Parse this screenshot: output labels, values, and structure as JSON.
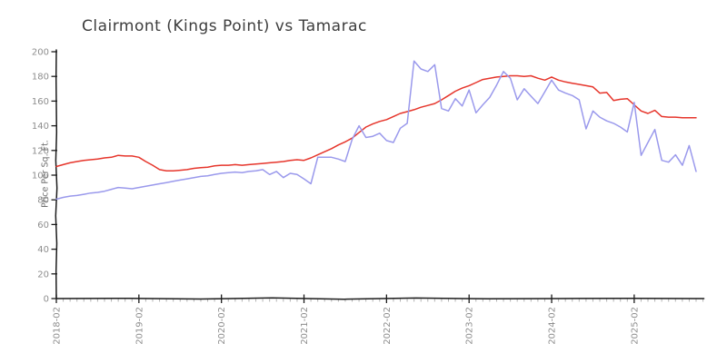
{
  "chart_data": {
    "type": "line",
    "title": "Clairmont (Kings Point) vs Tamarac",
    "ylabel": "Price Per Sq. Ft.",
    "xlabel": "",
    "ylim": [
      0,
      200
    ],
    "yticks": [
      0,
      20,
      40,
      60,
      80,
      100,
      120,
      140,
      160,
      180,
      200
    ],
    "x_major_tick_labels": [
      "2018-02",
      "2019-02",
      "2020-02",
      "2021-02",
      "2022-02",
      "2023-02",
      "2024-02",
      "2025-02"
    ],
    "legend_position": "none",
    "grid": false,
    "months": [
      "2018-02",
      "2018-03",
      "2018-04",
      "2018-05",
      "2018-06",
      "2018-07",
      "2018-08",
      "2018-09",
      "2018-10",
      "2018-11",
      "2018-12",
      "2019-01",
      "2019-02",
      "2019-03",
      "2019-04",
      "2019-05",
      "2019-06",
      "2019-07",
      "2019-08",
      "2019-09",
      "2019-10",
      "2019-11",
      "2019-12",
      "2020-01",
      "2020-02",
      "2020-03",
      "2020-04",
      "2020-05",
      "2020-06",
      "2020-07",
      "2020-08",
      "2020-09",
      "2020-10",
      "2020-11",
      "2020-12",
      "2021-01",
      "2021-02",
      "2021-03",
      "2021-04",
      "2021-05",
      "2021-06",
      "2021-07",
      "2021-08",
      "2021-09",
      "2021-10",
      "2021-11",
      "2021-12",
      "2022-01",
      "2022-02",
      "2022-03",
      "2022-04",
      "2022-05",
      "2022-06",
      "2022-07",
      "2022-08",
      "2022-09",
      "2022-10",
      "2022-11",
      "2022-12",
      "2023-01",
      "2023-02",
      "2023-03",
      "2023-04",
      "2023-05",
      "2023-06",
      "2023-07",
      "2023-08",
      "2023-09",
      "2023-10",
      "2023-11",
      "2023-12",
      "2024-01",
      "2024-02",
      "2024-03",
      "2024-04",
      "2024-05",
      "2024-06",
      "2024-07",
      "2024-08",
      "2024-09",
      "2024-10",
      "2024-11",
      "2024-12",
      "2025-01",
      "2025-02",
      "2025-03",
      "2025-04",
      "2025-05",
      "2025-06",
      "2025-07",
      "2025-08",
      "2025-09",
      "2025-10",
      "2025-11"
    ],
    "series": [
      {
        "name": "Clairmont (Kings Point)",
        "color": "#e6352b",
        "values": [
          107,
          108.5,
          110,
          111,
          112,
          112.5,
          113,
          114,
          114.5,
          116,
          115.5,
          115.5,
          114.5,
          111,
          108,
          104.5,
          103.5,
          103.5,
          104,
          104.5,
          105.5,
          106,
          106.5,
          107.5,
          108,
          108,
          108.5,
          108,
          108.5,
          109,
          109.5,
          110,
          110.5,
          111,
          112,
          112.5,
          112,
          114,
          116.5,
          119,
          121.5,
          124.5,
          127,
          130,
          134.5,
          139,
          141.5,
          143.5,
          145,
          147.5,
          150,
          151.5,
          153,
          155,
          156.5,
          158,
          161,
          164.5,
          168,
          170.5,
          172.5,
          175,
          177.5,
          178.5,
          179.5,
          180,
          180.5,
          180.5,
          180,
          180.5,
          178.5,
          177,
          179.5,
          177,
          175.5,
          174.5,
          173.5,
          172.5,
          171.5,
          166.5,
          167,
          160.5,
          161.5,
          162,
          157,
          152,
          150,
          152.5,
          147.5,
          147,
          147,
          146.5,
          146.5,
          146.5
        ]
      },
      {
        "name": "Tamarac",
        "color": "#9a99ec",
        "values": [
          80.5,
          82,
          83,
          83.5,
          84.5,
          85.5,
          86,
          87,
          88.5,
          90,
          89.5,
          89,
          90,
          91,
          92,
          93,
          94,
          95,
          96,
          97,
          98,
          99,
          99.5,
          100.5,
          101.5,
          102,
          102.5,
          102,
          103,
          103.5,
          104.5,
          100.5,
          103,
          98,
          101.5,
          100.5,
          97,
          93,
          114.5,
          114.5,
          114.5,
          113,
          111,
          129,
          140,
          130.5,
          131.5,
          134,
          128,
          126.5,
          138,
          142,
          192.5,
          186,
          184,
          189.5,
          154,
          152,
          162,
          156,
          169,
          150.5,
          157,
          163,
          173,
          184,
          178.5,
          161,
          170,
          164,
          158,
          167.5,
          177,
          169,
          166.5,
          164.5,
          161,
          137.5,
          152,
          147,
          144,
          142,
          139,
          135,
          159,
          116,
          126.5,
          137,
          112,
          110.5,
          116.5,
          108,
          124,
          103
        ]
      }
    ],
    "style": {
      "background": "#ffffff",
      "axis_color": "#1c1c1c",
      "tick_label_color": "#8e8e8e",
      "minor_tick_color": "#b4b4b4",
      "title_color": "#3d3d3d",
      "ylabel_color": "#6e6e6e"
    }
  }
}
